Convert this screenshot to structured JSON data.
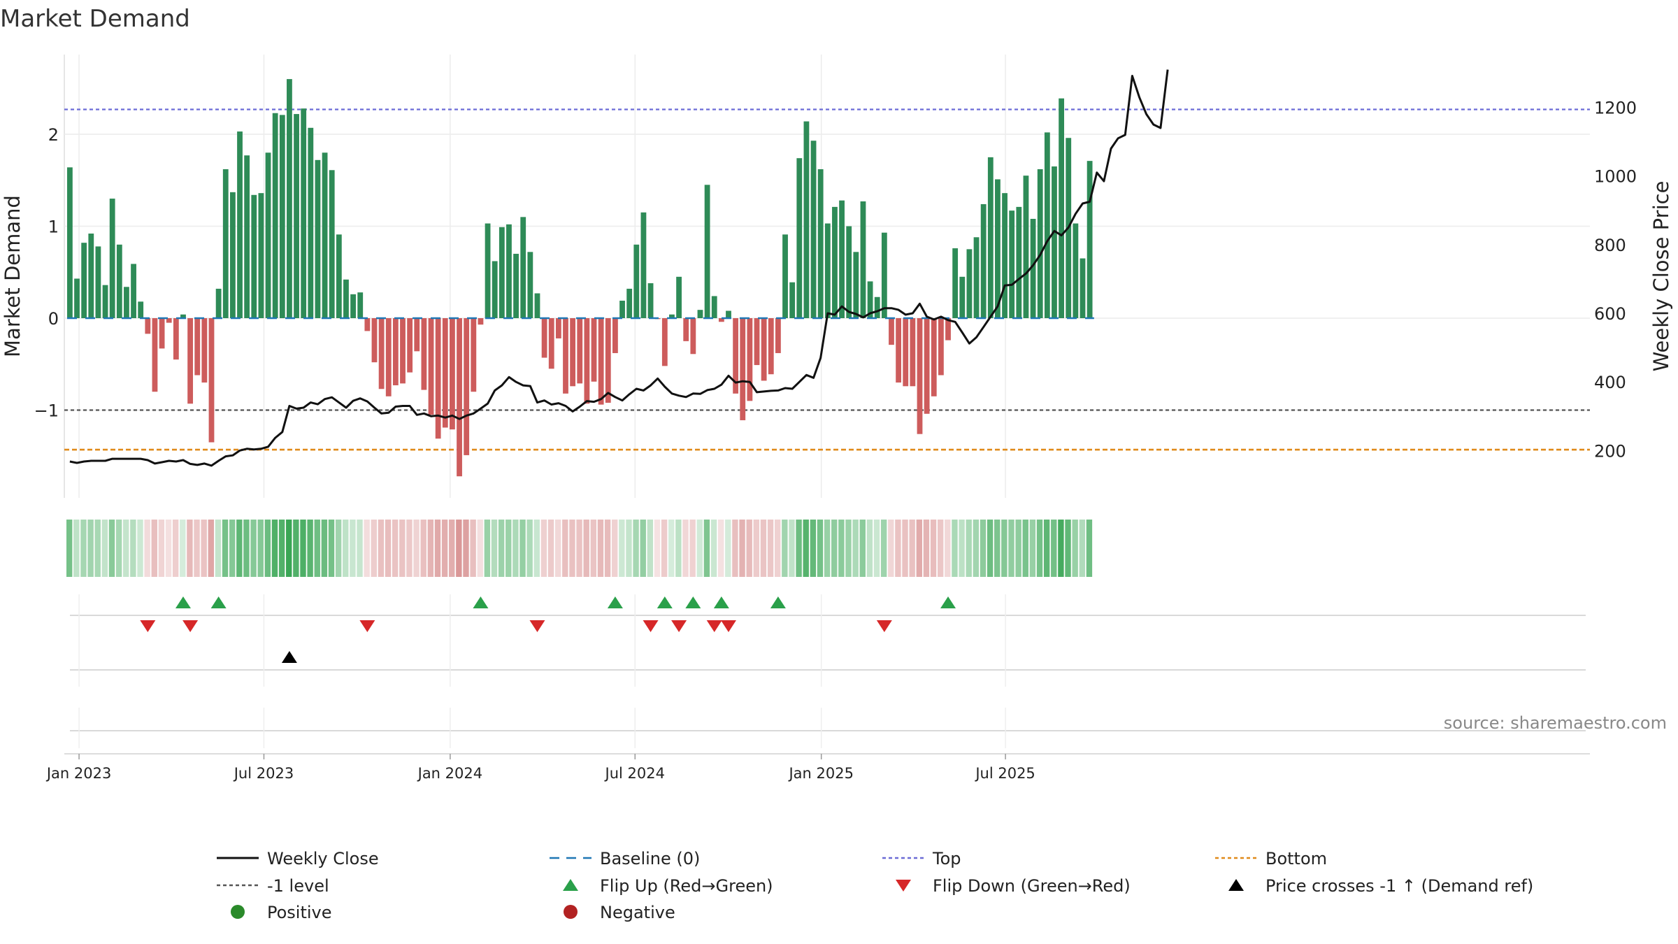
{
  "chart_data": {
    "type": "bar",
    "title": "Market Demand",
    "ylabel": "Market Demand",
    "y2label": "Weekly Close Price",
    "ylim": [
      -1.95,
      2.8
    ],
    "y2lim": [
      60,
      1350
    ],
    "yticks": [
      -1,
      0,
      1,
      2
    ],
    "y2ticks": [
      200,
      400,
      600,
      800,
      1000,
      1200
    ],
    "xticks": [
      "Jan 2023",
      "Jul 2023",
      "Jan 2024",
      "Jul 2024",
      "Jan 2025",
      "Jul 2025"
    ],
    "levels": {
      "top": 2.27,
      "minus_one": -1.0,
      "bottom": -1.43
    },
    "demand": [
      1.64,
      0.43,
      0.82,
      0.92,
      0.78,
      0.36,
      1.3,
      0.8,
      0.34,
      0.59,
      0.18,
      -0.17,
      -0.8,
      -0.33,
      -0.05,
      -0.45,
      0.04,
      -0.93,
      -0.62,
      -0.7,
      -1.35,
      0.32,
      1.62,
      1.37,
      2.03,
      1.77,
      1.34,
      1.36,
      1.8,
      2.23,
      2.21,
      2.6,
      2.22,
      2.28,
      2.07,
      1.72,
      1.8,
      1.61,
      0.91,
      0.42,
      0.26,
      0.28,
      -0.14,
      -0.48,
      -0.77,
      -0.85,
      -0.73,
      -0.71,
      -0.59,
      -0.36,
      -0.78,
      -1.05,
      -1.31,
      -1.19,
      -1.21,
      -1.72,
      -1.49,
      -0.8,
      -0.07,
      1.03,
      0.62,
      0.99,
      1.02,
      0.7,
      1.1,
      0.72,
      0.27,
      -0.43,
      -0.55,
      -0.22,
      -0.82,
      -0.74,
      -0.71,
      -0.93,
      -0.69,
      -0.94,
      -0.92,
      -0.38,
      0.19,
      0.32,
      0.8,
      1.15,
      0.38,
      -0.01,
      -0.52,
      0.04,
      0.45,
      -0.25,
      -0.39,
      0.09,
      1.45,
      0.24,
      -0.04,
      0.08,
      -0.82,
      -1.11,
      -0.9,
      -0.51,
      -0.68,
      -0.61,
      -0.38,
      0.91,
      0.39,
      1.74,
      2.14,
      1.93,
      1.62,
      1.03,
      1.21,
      1.28,
      1.0,
      0.72,
      1.27,
      0.4,
      0.23,
      0.93,
      -0.29,
      -0.7,
      -0.74,
      -0.74,
      -1.26,
      -1.04,
      -0.85,
      -0.62,
      -0.24,
      0.76,
      0.45,
      0.75,
      0.88,
      1.24,
      1.75,
      1.51,
      1.36,
      1.17,
      1.21,
      1.55,
      1.08,
      1.62,
      2.02,
      1.65,
      2.39,
      1.96,
      1.03,
      0.65,
      1.71
    ],
    "weekly_close": [
      168,
      164,
      168,
      170,
      170,
      170,
      176,
      176,
      176,
      176,
      176,
      172,
      162,
      166,
      170,
      168,
      172,
      161,
      158,
      162,
      156,
      170,
      183,
      186,
      200,
      205,
      203,
      205,
      211,
      237,
      254,
      330,
      322,
      325,
      340,
      335,
      350,
      355,
      340,
      325,
      345,
      352,
      343,
      325,
      308,
      310,
      328,
      330,
      330,
      304,
      308,
      300,
      302,
      296,
      302,
      292,
      302,
      308,
      322,
      337,
      375,
      390,
      414,
      400,
      390,
      388,
      340,
      346,
      334,
      338,
      330,
      314,
      328,
      344,
      342,
      350,
      368,
      356,
      346,
      364,
      380,
      375,
      390,
      410,
      386,
      366,
      360,
      356,
      366,
      365,
      376,
      380,
      392,
      418,
      398,
      402,
      400,
      370,
      372,
      374,
      375,
      382,
      380,
      400,
      420,
      412,
      470,
      600,
      596,
      620,
      604,
      598,
      588,
      600,
      606,
      615,
      615,
      610,
      596,
      600,
      628,
      590,
      582,
      590,
      580,
      575,
      544,
      512,
      530,
      560,
      590,
      620,
      681,
      683,
      700,
      716,
      740,
      770,
      810,
      840,
      827,
      850,
      890,
      920,
      925,
      1010,
      985,
      1080,
      1110,
      1120,
      1292,
      1230,
      1180,
      1150,
      1140,
      1310
    ],
    "flip_up_weeks": [
      16,
      21,
      58,
      77,
      84,
      88,
      92,
      100,
      124
    ],
    "flip_down_weeks": [
      11,
      17,
      42,
      66,
      82,
      86,
      91,
      93,
      115
    ],
    "price_cross_weeks": [
      31
    ]
  },
  "legend": [
    {
      "label": "Weekly Close",
      "color": "#111111",
      "style": "line"
    },
    {
      "label": "Baseline (0)",
      "color": "#1f77b4",
      "style": "dash"
    },
    {
      "label": "Top",
      "color": "#6b6bd6",
      "style": "dot"
    },
    {
      "label": "Bottom",
      "color": "#e08a1a",
      "style": "dot"
    },
    {
      "label": "-1 level",
      "color": "#555555",
      "style": "dot"
    },
    {
      "label": "Flip Up (Red→Green)",
      "color": "#2aa04a",
      "style": "tri-up"
    },
    {
      "label": "Flip Down (Green→Red)",
      "color": "#d62728",
      "style": "tri-down"
    },
    {
      "label": "Price crosses -1 ↑ (Demand ref)",
      "color": "#000000",
      "style": "tri-up"
    },
    {
      "label": "Positive",
      "color": "#2a8a2a",
      "style": "dot-marker"
    },
    {
      "label": "Negative",
      "color": "#b22222",
      "style": "dot-marker"
    }
  ],
  "source": "source: sharemaestro.com",
  "colors": {
    "positive_bar": "#2e8b57",
    "negative_bar": "#cd5c5c",
    "heat_pos": "#3aa655",
    "heat_neg": "#cc7070"
  }
}
